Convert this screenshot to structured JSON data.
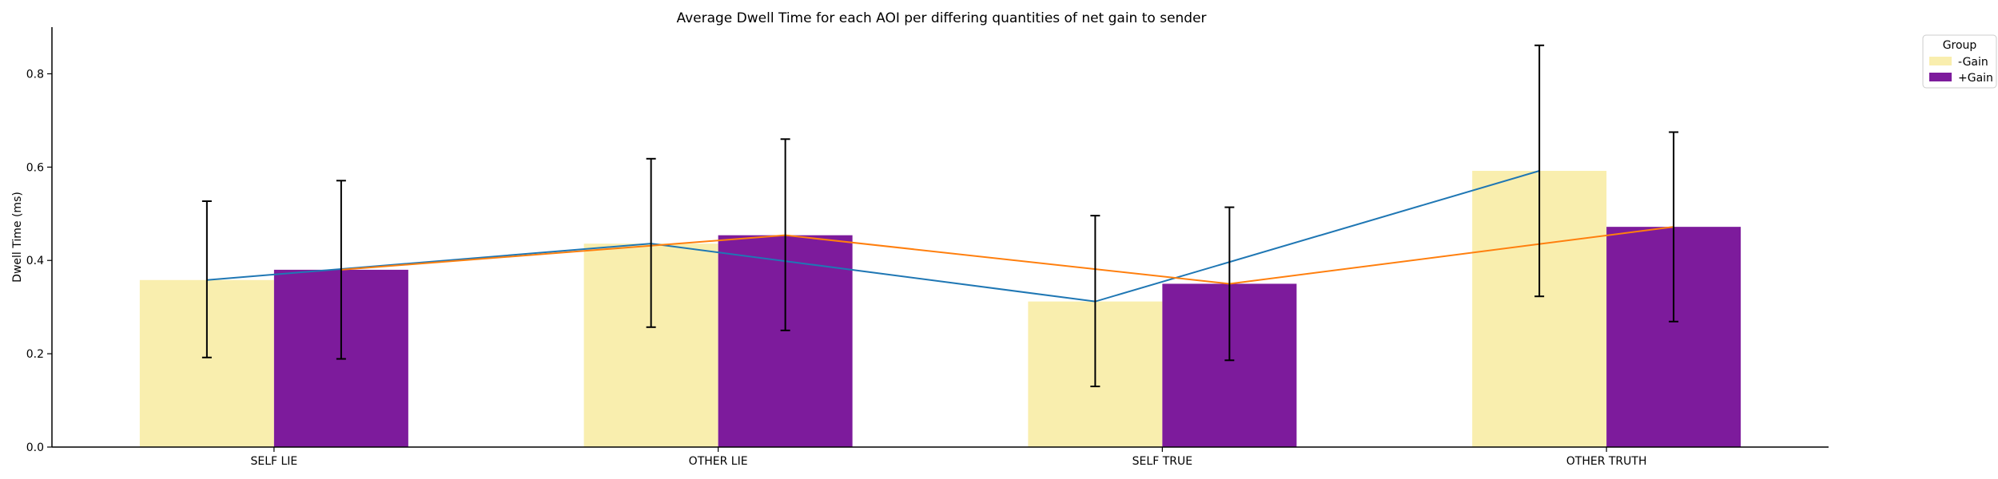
{
  "chart_data": {
    "type": "bar",
    "title": "Average Dwell Time for each AOI per differing quantities of net gain to sender",
    "xlabel": "",
    "ylabel": "Dwell Time (ms)",
    "ylim": [
      0,
      0.9
    ],
    "yticks": [
      "0.0",
      "0.2",
      "0.4",
      "0.6",
      "0.8"
    ],
    "categories": [
      "SELF LIE",
      "OTHER LIE",
      "SELF TRUE",
      "OTHER TRUTH"
    ],
    "legend": {
      "title": "Group",
      "placement": "top-right-outside"
    },
    "grid": false,
    "series": [
      {
        "name": "-Gain",
        "bar_color": "#f9eeae",
        "line_color": "#1f77b4",
        "values": [
          0.358,
          0.436,
          0.312,
          0.592
        ],
        "err_low": [
          0.192,
          0.257,
          0.13,
          0.323
        ],
        "err_high": [
          0.527,
          0.618,
          0.496,
          0.861
        ]
      },
      {
        "name": "+Gain",
        "bar_color": "#7d1b9c",
        "line_color": "#ff7f0e",
        "values": [
          0.38,
          0.454,
          0.35,
          0.472
        ],
        "err_low": [
          0.189,
          0.25,
          0.186,
          0.269
        ],
        "err_high": [
          0.571,
          0.66,
          0.514,
          0.675
        ]
      }
    ]
  }
}
